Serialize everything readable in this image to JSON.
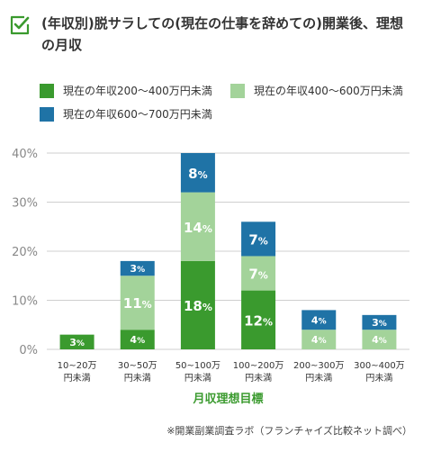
{
  "header": {
    "title": "(年収別)脱サラしての(現在の仕事を辞めての)開業後、理想の月収"
  },
  "footnote": "※開業副業調査ラボ（フランチャイズ比較ネット調べ）",
  "colors": {
    "accent": "#3a9a2e",
    "series1": "#3a9a2e",
    "series2": "#a3d39a",
    "series3": "#1f73a6",
    "grid": "#cfcfcf",
    "axis_label": "#888888",
    "xlabel": "#3a9a2e"
  },
  "chart_data": {
    "type": "bar",
    "stacked": true,
    "categories": [
      "10~20万\n円未満",
      "30~50万\n円未満",
      "50~100万\n円未満",
      "100~200万\n円未満",
      "200~300万\n円未満",
      "300~400万\n円未満"
    ],
    "series": [
      {
        "name": "現在の年収200〜400万円未満",
        "color": "#3a9a2e",
        "values": [
          3,
          4,
          18,
          12,
          0,
          0
        ],
        "labels": [
          "3%",
          "4%",
          "18%",
          "12%",
          "",
          ""
        ]
      },
      {
        "name": "現在の年収400〜600万円未満",
        "color": "#a3d39a",
        "values": [
          0,
          11,
          14,
          7,
          4,
          4
        ],
        "labels": [
          "",
          "11%",
          "14%",
          "7%",
          "4%",
          "4%"
        ]
      },
      {
        "name": "現在の年収600〜700万円未満",
        "color": "#1f73a6",
        "values": [
          0,
          3,
          8,
          7,
          4,
          3
        ],
        "labels": [
          "",
          "3%",
          "8%",
          "7%",
          "4%",
          "3%"
        ]
      }
    ],
    "xlabel": "月収理想目標",
    "ylabel": "",
    "ylim": [
      0,
      40
    ],
    "yticks": [
      "0%",
      "10%",
      "20%",
      "30%",
      "40%"
    ],
    "grid": true,
    "legend": "top"
  }
}
